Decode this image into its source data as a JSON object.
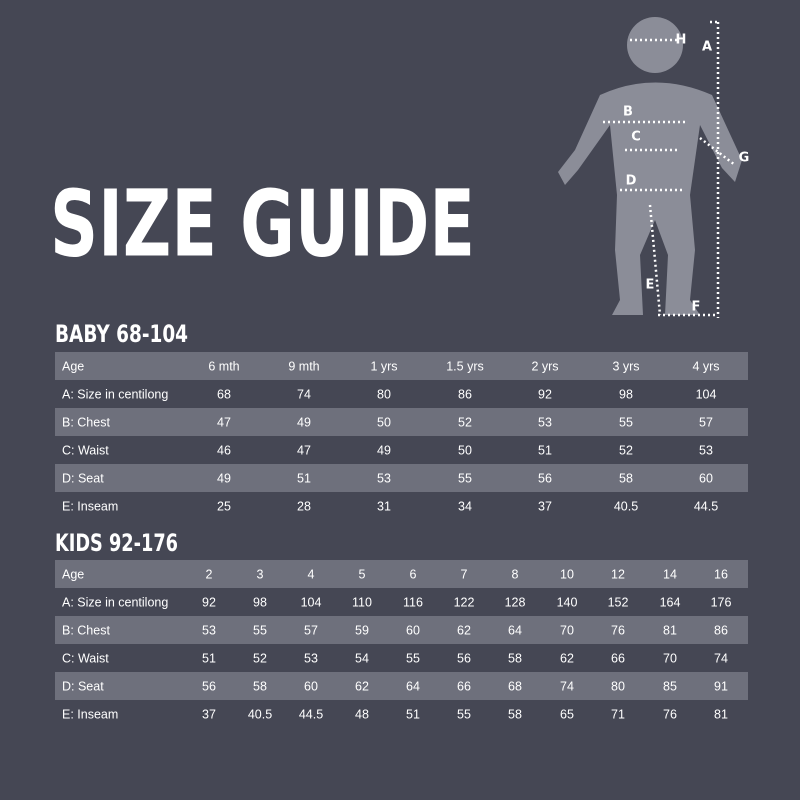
{
  "title": "SIZE GUIDE",
  "diagram": {
    "labels": [
      "H",
      "A",
      "B",
      "C",
      "G",
      "D",
      "E",
      "F"
    ]
  },
  "baby": {
    "title": "BABY 68-104",
    "header": [
      "Age",
      "6 mth",
      "9 mth",
      "1 yrs",
      "1.5 yrs",
      "2 yrs",
      "3 yrs",
      "4 yrs"
    ],
    "rows": [
      [
        "A: Size in centilong",
        68,
        74,
        80,
        86,
        92,
        98,
        104
      ],
      [
        "B: Chest",
        47,
        49,
        50,
        52,
        53,
        55,
        57
      ],
      [
        "C: Waist",
        46,
        47,
        49,
        50,
        51,
        52,
        53
      ],
      [
        "D: Seat",
        49,
        51,
        53,
        55,
        56,
        58,
        60
      ],
      [
        "E: Inseam",
        25,
        28,
        31,
        34,
        37,
        40.5,
        44.5
      ]
    ]
  },
  "kids": {
    "title": "KIDS 92-176",
    "header": [
      "Age",
      "2",
      "3",
      "4",
      "5",
      "6",
      "7",
      "8",
      "10",
      "12",
      "14",
      "16"
    ],
    "rows": [
      [
        "A: Size in centilong",
        92,
        98,
        104,
        110,
        116,
        122,
        128,
        140,
        152,
        164,
        176
      ],
      [
        "B: Chest",
        53,
        55,
        57,
        59,
        60,
        62,
        64,
        70,
        76,
        81,
        86
      ],
      [
        "C: Waist",
        51,
        52,
        53,
        54,
        55,
        56,
        58,
        62,
        66,
        70,
        74
      ],
      [
        "D: Seat",
        56,
        58,
        60,
        62,
        64,
        66,
        68,
        74,
        80,
        85,
        91
      ],
      [
        "E: Inseam",
        37,
        40.5,
        44.5,
        48,
        51,
        55,
        58,
        65,
        71,
        76,
        81
      ]
    ]
  }
}
